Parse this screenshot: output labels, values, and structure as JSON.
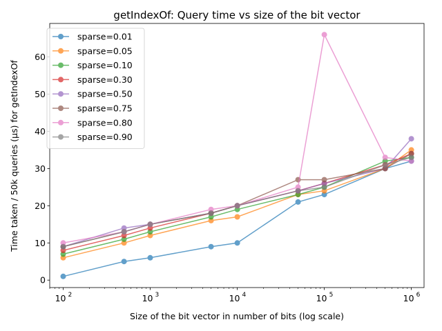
{
  "chart_data": {
    "type": "line",
    "title": "getIndexOf: Query time vs size of the bit vector",
    "xlabel": "Size of the bit vector in number of bits (log scale)",
    "ylabel": "Time taken / 50k queries (µs) for getIndexOf",
    "xscale": "log",
    "xlim": [
      70,
      1400000
    ],
    "ylim": [
      -2,
      69
    ],
    "xticks": [
      {
        "value": 100,
        "base": "10",
        "exp": "2"
      },
      {
        "value": 1000,
        "base": "10",
        "exp": "3"
      },
      {
        "value": 10000,
        "base": "10",
        "exp": "4"
      },
      {
        "value": 100000,
        "base": "10",
        "exp": "5"
      },
      {
        "value": 1000000,
        "base": "10",
        "exp": "6"
      }
    ],
    "yticks": [
      "0",
      "10",
      "20",
      "30",
      "40",
      "50",
      "60"
    ],
    "grid": false,
    "legend_position": "top-left",
    "x": [
      100,
      500,
      1000,
      5000,
      10000,
      50000,
      100000,
      500000,
      1000000
    ],
    "series": [
      {
        "name": "sparse=0.01",
        "color": "#1f77b4",
        "values": [
          1,
          5,
          6,
          9,
          10,
          21,
          23,
          30,
          32
        ]
      },
      {
        "name": "sparse=0.05",
        "color": "#ff7f0e",
        "values": [
          6,
          10,
          12,
          16,
          17,
          23,
          24,
          30,
          35
        ]
      },
      {
        "name": "sparse=0.10",
        "color": "#2ca02c",
        "values": [
          7,
          11,
          13,
          17,
          19,
          23,
          25,
          32,
          33
        ]
      },
      {
        "name": "sparse=0.30",
        "color": "#d62728",
        "values": [
          8,
          12,
          14,
          18,
          20,
          24,
          26,
          31,
          34
        ]
      },
      {
        "name": "sparse=0.50",
        "color": "#9467bd",
        "values": [
          9,
          14,
          15,
          18,
          20,
          24,
          26,
          30,
          38
        ]
      },
      {
        "name": "sparse=0.75",
        "color": "#8c564b",
        "values": [
          9,
          13,
          15,
          18,
          20,
          27,
          27,
          30,
          34
        ]
      },
      {
        "name": "sparse=0.80",
        "color": "#e377c2",
        "values": [
          10,
          13,
          15,
          19,
          20,
          25,
          66,
          33,
          32
        ]
      },
      {
        "name": "sparse=0.90",
        "color": "#7f7f7f",
        "values": [
          9,
          13,
          15,
          18,
          20,
          24,
          25,
          31,
          33
        ]
      }
    ]
  }
}
